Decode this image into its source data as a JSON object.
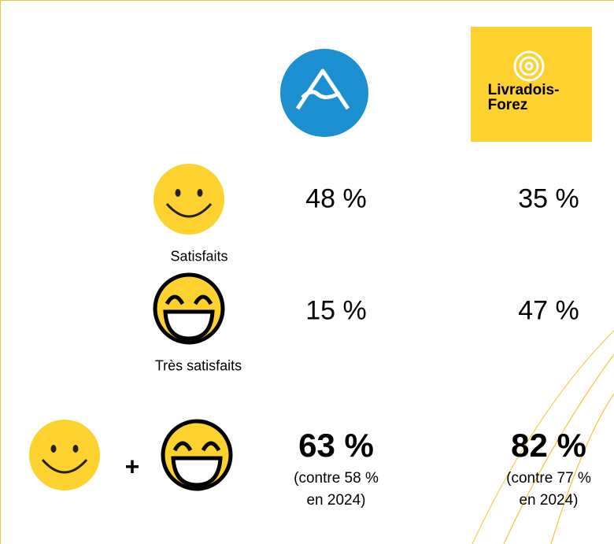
{
  "logos": {
    "right": {
      "title": "Livradois-",
      "title2": "Forez"
    }
  },
  "rows": [
    {
      "label": "Satisfaits",
      "left": "48 %",
      "right": "35 %"
    },
    {
      "label": "Très satisfaits",
      "left": "15 %",
      "right": "47 %"
    }
  ],
  "total": {
    "plus": "+",
    "left": {
      "value": "63 %",
      "line1": "(contre 58 %",
      "line2": "en 2024)"
    },
    "right": {
      "value": "82 %",
      "line1": "(contre 77 %",
      "line2": "en 2024)"
    }
  }
}
